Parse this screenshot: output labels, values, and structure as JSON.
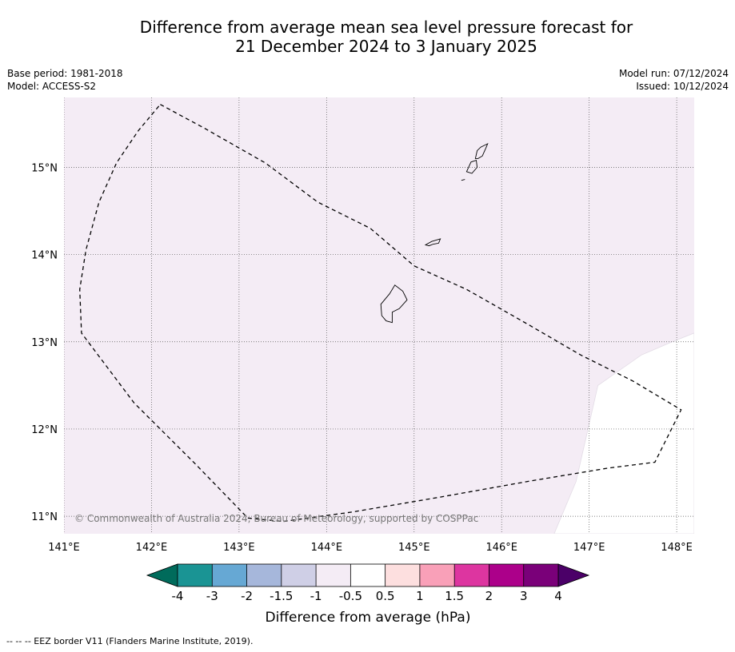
{
  "title_line1": "Difference from average mean sea level pressure forecast for",
  "title_line2": "21 December 2024 to 3 January 2025",
  "meta_left": {
    "base_period": "Base period: 1981-2018",
    "model": "Model: ACCESS-S2"
  },
  "meta_right": {
    "model_run": "Model run: 07/12/2024",
    "issued": "Issued: 10/12/2024"
  },
  "map": {
    "lon_range": [
      141.0,
      148.2
    ],
    "lat_range": [
      10.8,
      15.8
    ],
    "lon_ticks": [
      141,
      142,
      143,
      144,
      145,
      146,
      147,
      148
    ],
    "lat_ticks": [
      11,
      12,
      13,
      14,
      15
    ],
    "lon_tick_labels": [
      "141°E",
      "142°E",
      "143°E",
      "144°E",
      "145°E",
      "146°E",
      "147°E",
      "148°E"
    ],
    "lat_tick_labels": [
      "11°N",
      "12°N",
      "13°N",
      "14°N",
      "15°N"
    ],
    "grid": "dotted",
    "copyright": "© Commonwealth of Australia 2024, Bureau of Meteorology, supported by COSPPac",
    "anomaly_fill_color": "#f4ecf5",
    "eez_border": [
      [
        142.1,
        15.72
      ],
      [
        142.6,
        15.45
      ],
      [
        143.3,
        15.05
      ],
      [
        143.9,
        14.6
      ],
      [
        144.5,
        14.3
      ],
      [
        145.0,
        13.87
      ],
      [
        145.6,
        13.6
      ],
      [
        146.3,
        13.2
      ],
      [
        146.9,
        12.85
      ],
      [
        147.5,
        12.55
      ],
      [
        148.05,
        12.22
      ],
      [
        148.0,
        12.12
      ],
      [
        147.75,
        11.62
      ],
      [
        147.2,
        11.55
      ],
      [
        146.3,
        11.4
      ],
      [
        145.3,
        11.22
      ],
      [
        144.3,
        11.05
      ],
      [
        143.5,
        10.94
      ],
      [
        143.1,
        10.98
      ],
      [
        142.5,
        11.6
      ],
      [
        141.8,
        12.3
      ],
      [
        141.2,
        13.1
      ],
      [
        141.18,
        13.6
      ],
      [
        141.25,
        14.05
      ],
      [
        141.4,
        14.6
      ],
      [
        141.6,
        15.05
      ],
      [
        141.85,
        15.42
      ],
      [
        142.1,
        15.72
      ]
    ],
    "no_data_region": [
      [
        148.2,
        13.1
      ],
      [
        147.95,
        13.0
      ],
      [
        147.6,
        12.85
      ],
      [
        147.1,
        12.5
      ],
      [
        146.85,
        11.4
      ],
      [
        146.6,
        10.8
      ],
      [
        148.2,
        10.8
      ]
    ],
    "islands": [
      [
        [
          144.62,
          13.43
        ],
        [
          144.72,
          13.55
        ],
        [
          144.78,
          13.65
        ],
        [
          144.87,
          13.58
        ],
        [
          144.92,
          13.48
        ],
        [
          144.83,
          13.38
        ],
        [
          144.75,
          13.34
        ],
        [
          144.75,
          13.22
        ],
        [
          144.68,
          13.24
        ],
        [
          144.63,
          13.3
        ]
      ],
      [
        [
          145.13,
          14.11
        ],
        [
          145.2,
          14.15
        ],
        [
          145.3,
          14.18
        ],
        [
          145.28,
          14.13
        ],
        [
          145.22,
          14.12
        ],
        [
          145.17,
          14.1
        ]
      ],
      [
        [
          145.6,
          14.95
        ],
        [
          145.65,
          15.06
        ],
        [
          145.71,
          15.08
        ],
        [
          145.72,
          15.0
        ],
        [
          145.66,
          14.93
        ]
      ],
      [
        [
          145.7,
          15.1
        ],
        [
          145.72,
          15.19
        ],
        [
          145.76,
          15.23
        ],
        [
          145.84,
          15.27
        ],
        [
          145.82,
          15.22
        ],
        [
          145.78,
          15.13
        ],
        [
          145.73,
          15.1
        ]
      ],
      [
        [
          145.54,
          14.85
        ],
        [
          145.58,
          14.86
        ]
      ]
    ]
  },
  "colorbar": {
    "label": "Difference from average (hPa)",
    "under_color": "#006b5b",
    "over_color": "#4b0068",
    "colors": [
      "#1a9494",
      "#66a8d4",
      "#a6b7db",
      "#cfcfe6",
      "#f4ecf5",
      "#ffffff",
      "#fddfdf",
      "#f9a0b8",
      "#dd35a0",
      "#ac008a",
      "#7a0079"
    ],
    "tick_labels": [
      "-4",
      "-3",
      "-2",
      "-1.5",
      "-1",
      "-0.5",
      "0.5",
      "1",
      "1.5",
      "2",
      "3",
      "4"
    ]
  },
  "footer": "-- -- -- EEZ border V11 (Flanders Marine Institute, 2019)."
}
